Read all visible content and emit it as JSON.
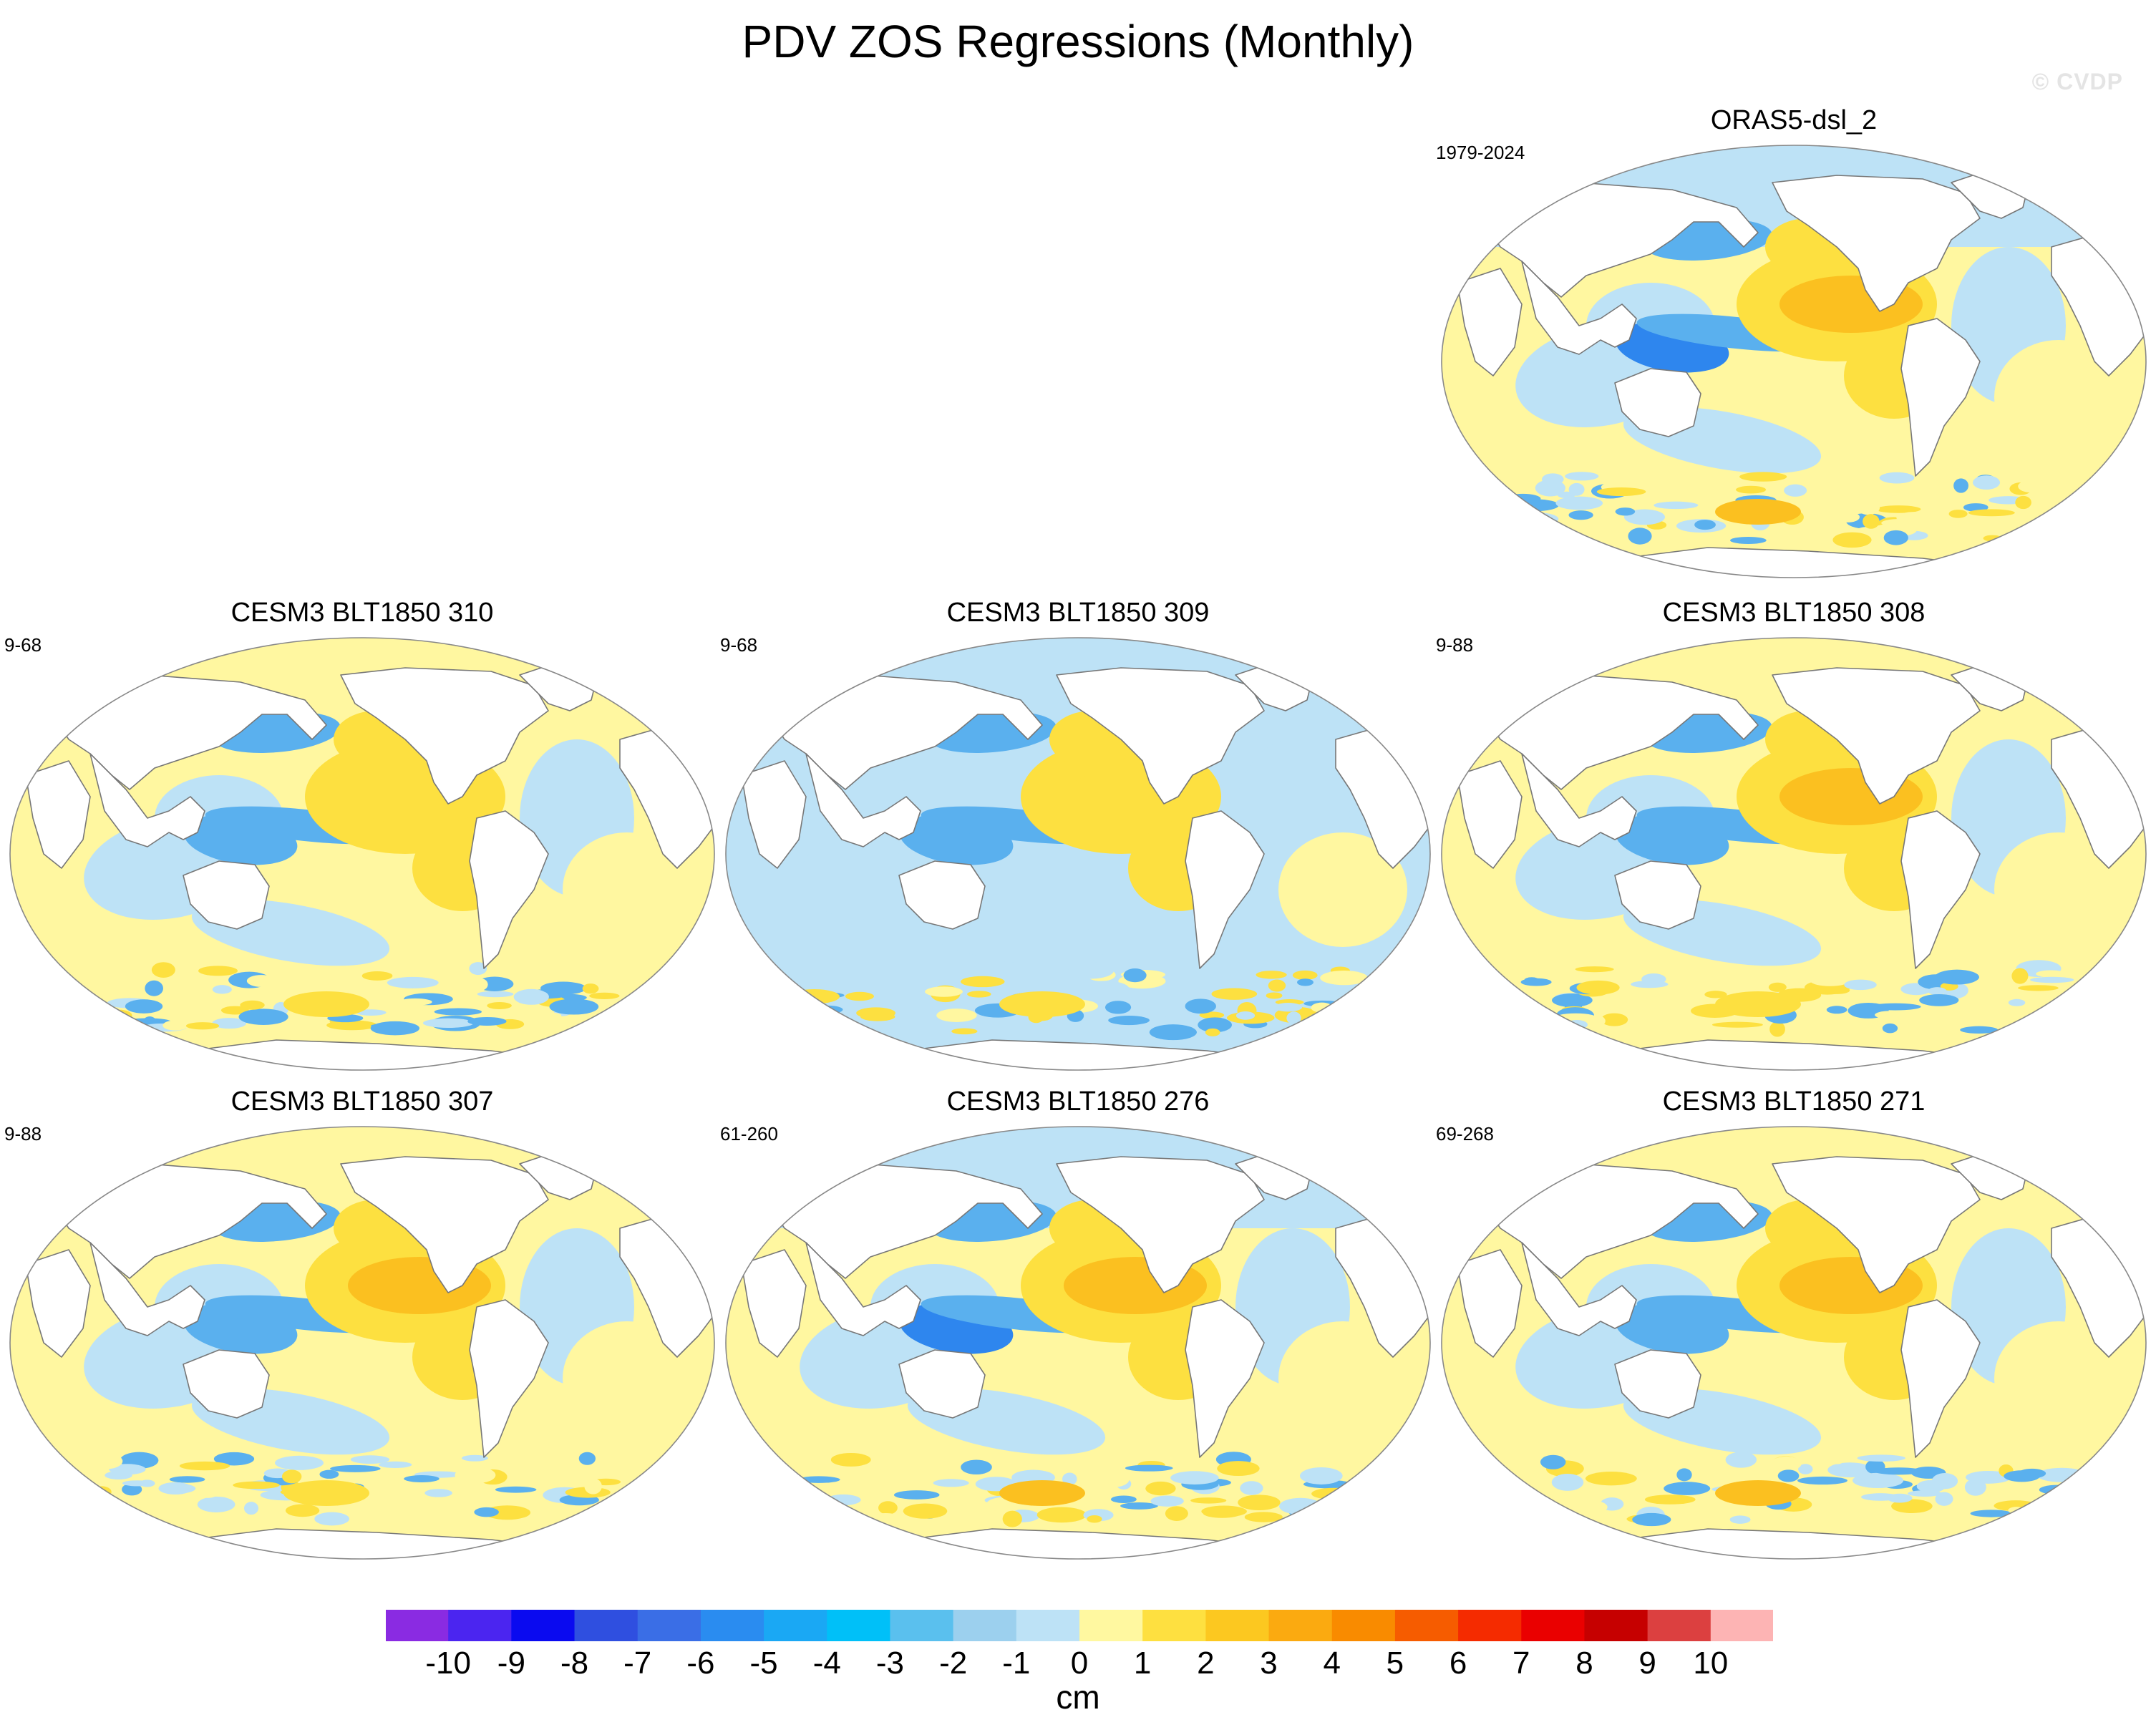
{
  "title": "PDV ZOS Regressions (Monthly)",
  "watermark": "© CVDP",
  "units": "cm",
  "colorbar": {
    "labels": [
      "-10",
      "-9",
      "-8",
      "-7",
      "-6",
      "-5",
      "-4",
      "-3",
      "-2",
      "-1",
      "0",
      "1",
      "2",
      "3",
      "4",
      "5",
      "6",
      "7",
      "8",
      "9",
      "10"
    ],
    "colors": [
      "#8a2be2",
      "#4b25f0",
      "#0a0af0",
      "#2f4fe0",
      "#3a6ee6",
      "#2a8cf0",
      "#1aa8f4",
      "#00c0f8",
      "#5ac0ee",
      "#9cd0ee",
      "#bde2f6",
      "#fff8a0",
      "#fee040",
      "#fcc820",
      "#fbaa10",
      "#f98b00",
      "#f65c00",
      "#f52b00",
      "#ea0000",
      "#c60000",
      "#dc4040",
      "#fdb4b4"
    ]
  },
  "panels": [
    {
      "title": "ORAS5-dsl_2",
      "years": "1979-2024",
      "style": 0
    },
    {
      "title": "CESM3 BLT1850 310",
      "years": "9-68",
      "style": 1
    },
    {
      "title": "CESM3 BLT1850 309",
      "years": "9-68",
      "style": 2
    },
    {
      "title": "CESM3 BLT1850 308",
      "years": "9-88",
      "style": 3
    },
    {
      "title": "CESM3 BLT1850 307",
      "years": "9-88",
      "style": 4
    },
    {
      "title": "CESM3 BLT1850 276",
      "years": "61-260",
      "style": 5
    },
    {
      "title": "CESM3 BLT1850 271",
      "years": "69-268",
      "style": 6
    }
  ]
}
